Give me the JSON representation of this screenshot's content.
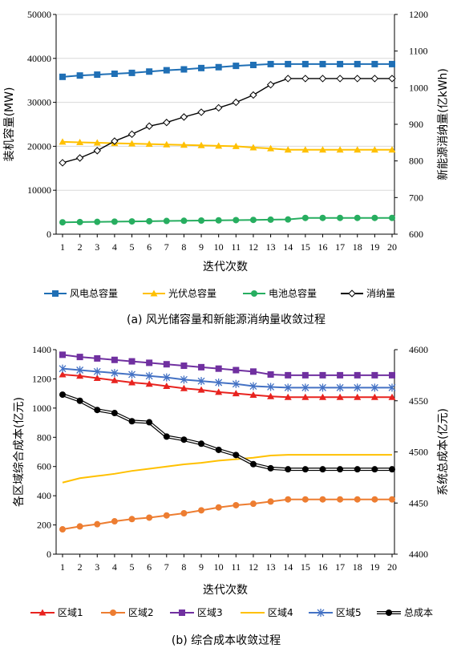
{
  "chart_data": [
    {
      "type": "line",
      "caption": "(a)  风光储容量和新能源消纳量收敛过程",
      "xlabel": "迭代次数",
      "ylabel": "装机容量(MW)",
      "y2label": "新能源消纳量(亿kWh)",
      "x": [
        1,
        2,
        3,
        4,
        5,
        6,
        7,
        8,
        9,
        10,
        11,
        12,
        13,
        14,
        15,
        16,
        17,
        18,
        19,
        20
      ],
      "ylim": [
        0,
        50000
      ],
      "yticks": [
        0,
        10000,
        20000,
        30000,
        40000,
        50000
      ],
      "y2lim": [
        600,
        1200
      ],
      "y2ticks": [
        600,
        700,
        800,
        900,
        1000,
        1100,
        1200
      ],
      "grid": true,
      "legend": "bottom",
      "series": [
        {
          "name": "风电总容量",
          "axis": "left",
          "color": "#1f6fb5",
          "marker": "square",
          "values": [
            35800,
            36100,
            36300,
            36500,
            36700,
            37000,
            37300,
            37500,
            37800,
            38000,
            38300,
            38500,
            38700,
            38700,
            38700,
            38700,
            38700,
            38700,
            38700,
            38700
          ]
        },
        {
          "name": "光伏总容量",
          "axis": "left",
          "color": "#ffc000",
          "marker": "triangle",
          "values": [
            21000,
            20900,
            20800,
            20700,
            20600,
            20500,
            20400,
            20300,
            20200,
            20100,
            20000,
            19700,
            19500,
            19200,
            19200,
            19200,
            19200,
            19200,
            19200,
            19200
          ]
        },
        {
          "name": "电池总容量",
          "axis": "left",
          "color": "#27ae60",
          "marker": "circle",
          "values": [
            2700,
            2750,
            2800,
            2850,
            2900,
            2950,
            3000,
            3050,
            3100,
            3150,
            3200,
            3250,
            3300,
            3350,
            3700,
            3700,
            3700,
            3700,
            3700,
            3700
          ]
        },
        {
          "name": "消纳量",
          "axis": "right",
          "color": "#000000",
          "marker": "diamond",
          "values": [
            795,
            808,
            828,
            854,
            873,
            895,
            905,
            920,
            933,
            945,
            960,
            980,
            1008,
            1025,
            1025,
            1025,
            1025,
            1025,
            1025,
            1025
          ]
        }
      ]
    },
    {
      "type": "line",
      "caption": "(b)  综合成本收敛过程",
      "xlabel": "迭代次数",
      "ylabel": "各区域综合成本(亿元)",
      "y2label": "系统总成本(亿元)",
      "x": [
        1,
        2,
        3,
        4,
        5,
        6,
        7,
        8,
        9,
        10,
        11,
        12,
        13,
        14,
        15,
        16,
        17,
        18,
        19,
        20
      ],
      "ylim": [
        0,
        1400
      ],
      "yticks": [
        0,
        200,
        400,
        600,
        800,
        1000,
        1200,
        1400
      ],
      "y2lim": [
        4400,
        4600
      ],
      "y2ticks": [
        4400,
        4450,
        4500,
        4550,
        4600
      ],
      "grid": false,
      "legend": "bottom",
      "series": [
        {
          "name": "区域1",
          "axis": "left",
          "color": "#e8231f",
          "marker": "triangle",
          "values": [
            1230,
            1220,
            1205,
            1190,
            1175,
            1165,
            1150,
            1135,
            1125,
            1110,
            1100,
            1090,
            1080,
            1075,
            1075,
            1075,
            1075,
            1075,
            1075,
            1075
          ]
        },
        {
          "name": "区域2",
          "axis": "left",
          "color": "#ed7d31",
          "marker": "circle",
          "values": [
            170,
            190,
            205,
            225,
            240,
            250,
            265,
            280,
            300,
            320,
            335,
            345,
            360,
            375,
            375,
            375,
            375,
            375,
            375,
            375
          ]
        },
        {
          "name": "区域3",
          "axis": "left",
          "color": "#7030a0",
          "marker": "square",
          "values": [
            1365,
            1350,
            1340,
            1330,
            1320,
            1310,
            1300,
            1290,
            1280,
            1270,
            1260,
            1250,
            1230,
            1225,
            1225,
            1225,
            1225,
            1225,
            1225,
            1225
          ]
        },
        {
          "name": "区域4",
          "axis": "left",
          "color": "#ffc000",
          "marker": "none",
          "values": [
            490,
            520,
            535,
            550,
            570,
            585,
            600,
            615,
            625,
            640,
            650,
            660,
            675,
            680,
            680,
            680,
            680,
            680,
            680,
            680
          ]
        },
        {
          "name": "区域5",
          "axis": "left",
          "color": "#4472c4",
          "marker": "star",
          "values": [
            1270,
            1260,
            1250,
            1240,
            1230,
            1220,
            1210,
            1195,
            1185,
            1175,
            1165,
            1150,
            1145,
            1140,
            1140,
            1140,
            1140,
            1140,
            1140,
            1140
          ]
        },
        {
          "name": "总成本",
          "axis": "right",
          "color": "#000000",
          "marker": "circle",
          "values": [
            4556,
            4550,
            4541,
            4538,
            4530,
            4529,
            4515,
            4512,
            4508,
            4502,
            4497,
            4488,
            4484,
            4483,
            4483,
            4483,
            4483,
            4483,
            4483,
            4483
          ]
        }
      ]
    }
  ]
}
